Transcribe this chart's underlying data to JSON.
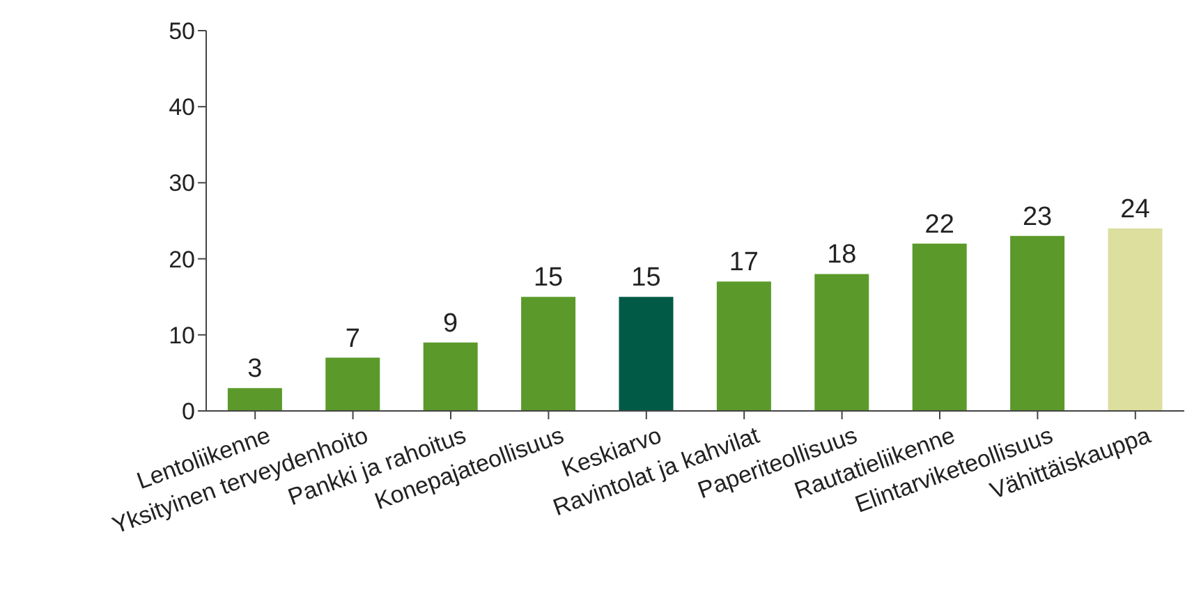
{
  "chart_data": {
    "type": "bar",
    "categories": [
      "Lentoliikenne",
      "Yksityinen terveydenhoito",
      "Pankki ja rahoitus",
      "Konepajateollisuus",
      "Keskiarvo",
      "Ravintolat ja kahvilat",
      "Paperiteollisuus",
      "Rautatieliikenne",
      "Elintarviketeollisuus",
      "Vähittäiskauppa"
    ],
    "values": [
      3,
      7,
      9,
      15,
      15,
      17,
      18,
      22,
      23,
      24
    ],
    "colors": [
      "#5b9a2a",
      "#5b9a2a",
      "#5b9a2a",
      "#5b9a2a",
      "#005a46",
      "#5b9a2a",
      "#5b9a2a",
      "#5b9a2a",
      "#5b9a2a",
      "#dcdf9e"
    ],
    "ylim": [
      0,
      50
    ],
    "yticks": [
      0,
      10,
      20,
      30,
      40,
      50
    ],
    "data_labels": true,
    "grid": false,
    "legend": false
  }
}
